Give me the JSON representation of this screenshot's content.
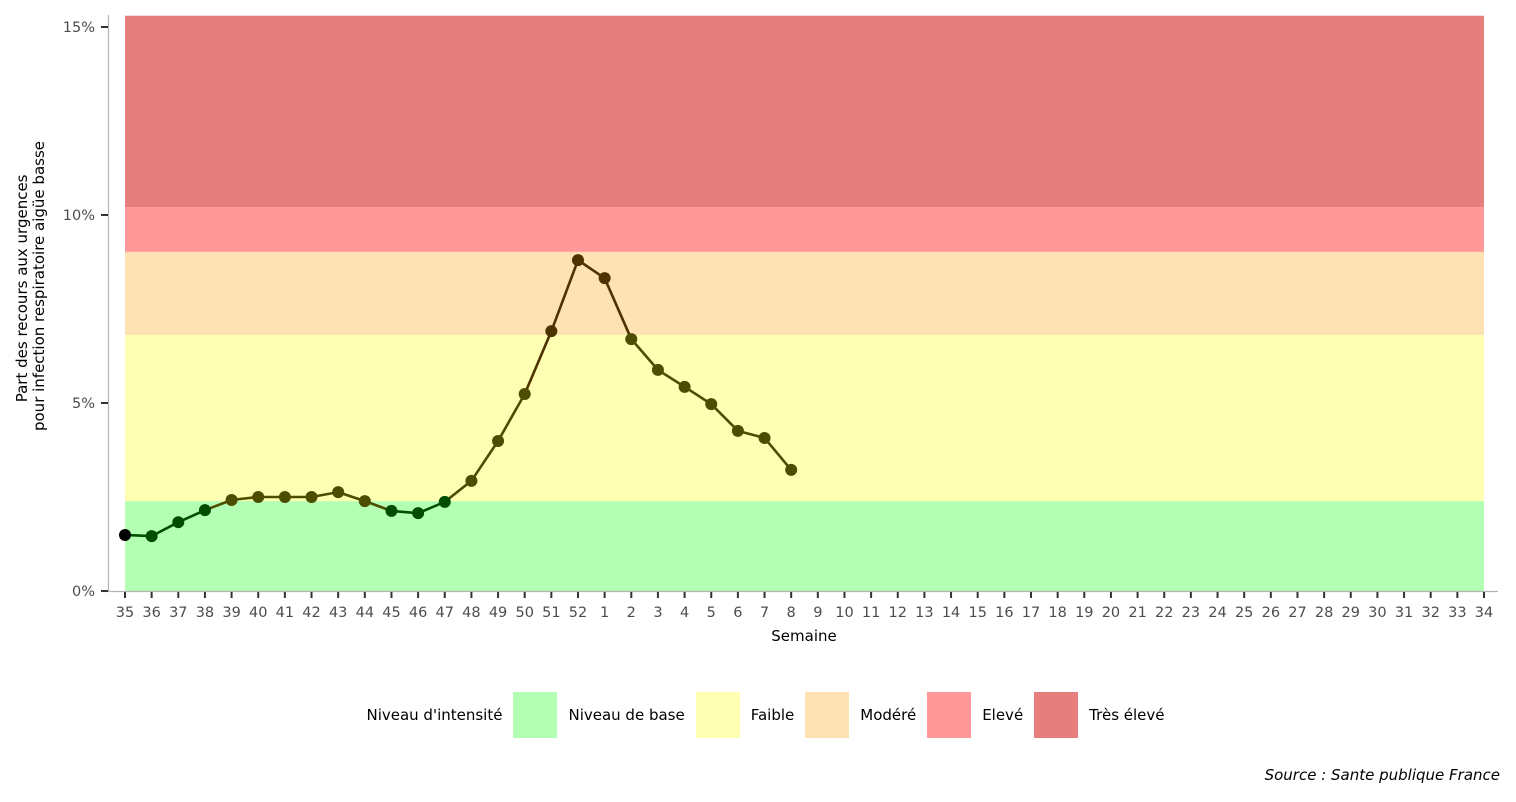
{
  "chart_data": {
    "type": "line",
    "title": "",
    "xlabel": "Semaine",
    "ylabel": "Part des recours aux urgences\npour infection respiratoire aigüe basse",
    "ylabel_lines": [
      "Part des recours aux urgences",
      "pour infection respiratoire aigüe basse"
    ],
    "ylim": [
      0,
      15.3
    ],
    "yticks": [
      0,
      5,
      10,
      15
    ],
    "ytick_labels": [
      "0%",
      "5%",
      "10%",
      "15%"
    ],
    "grid": false,
    "categories": [
      "35",
      "36",
      "37",
      "38",
      "39",
      "40",
      "41",
      "42",
      "43",
      "44",
      "45",
      "46",
      "47",
      "48",
      "49",
      "50",
      "51",
      "52",
      "1",
      "2",
      "3",
      "4",
      "5",
      "6",
      "7",
      "8",
      "9",
      "10",
      "11",
      "12",
      "13",
      "14",
      "15",
      "16",
      "17",
      "18",
      "19",
      "20",
      "21",
      "22",
      "23",
      "24",
      "25",
      "26",
      "27",
      "28",
      "29",
      "30",
      "31",
      "32",
      "33",
      "34"
    ],
    "series": [
      {
        "name": "Part des recours (%)",
        "values": [
          1.49,
          1.46,
          1.83,
          2.15,
          2.42,
          2.5,
          2.5,
          2.5,
          2.63,
          2.39,
          2.13,
          2.07,
          2.37,
          2.93,
          3.99,
          5.24,
          6.91,
          8.8,
          8.32,
          6.7,
          5.88,
          5.43,
          4.97,
          4.26,
          4.07,
          3.22,
          null,
          null,
          null,
          null,
          null,
          null,
          null,
          null,
          null,
          null,
          null,
          null,
          null,
          null,
          null,
          null,
          null,
          null,
          null,
          null,
          null,
          null,
          null,
          null,
          null,
          null
        ]
      }
    ],
    "bands": [
      {
        "label": "Niveau de base",
        "from": 0,
        "to": 2.39,
        "color": "#b3ffb3",
        "point_color": "#004d00"
      },
      {
        "label": "Faible",
        "from": 2.39,
        "to": 6.81,
        "color": "#ffffb3",
        "point_color": "#4d4d00"
      },
      {
        "label": "Modéré",
        "from": 6.81,
        "to": 9.02,
        "color": "#ffe2b3",
        "point_color": "#4d3300"
      },
      {
        "label": "Elevé",
        "from": 9.02,
        "to": 10.21,
        "color": "#ff9999",
        "point_color": "#4d1a00"
      },
      {
        "label": "Très élevé",
        "from": 10.21,
        "to": 15.3,
        "color": "#e67e7e",
        "point_color": "#4d0000"
      }
    ],
    "legend": {
      "title": "Niveau d'intensité",
      "position": "bottom",
      "entries": [
        "Niveau de base",
        "Faible",
        "Modéré",
        "Elevé",
        "Très élevé"
      ]
    },
    "annotations": [
      "Source : Sante publique France"
    ]
  },
  "legend": {
    "title": "Niveau d'intensité",
    "items": [
      {
        "label": "Niveau de base",
        "color": "#b3ffb3"
      },
      {
        "label": "Faible",
        "color": "#ffffb3"
      },
      {
        "label": "Modéré",
        "color": "#ffe2b3"
      },
      {
        "label": "Elevé",
        "color": "#ff9999"
      },
      {
        "label": "Très élevé",
        "color": "#e67e7e"
      }
    ]
  },
  "caption": "Source : Sante publique France",
  "colors": {
    "axis": "#b3b3b3",
    "tick": "#333333",
    "tick_label": "#4d4d4d",
    "first_point": "#000000"
  }
}
